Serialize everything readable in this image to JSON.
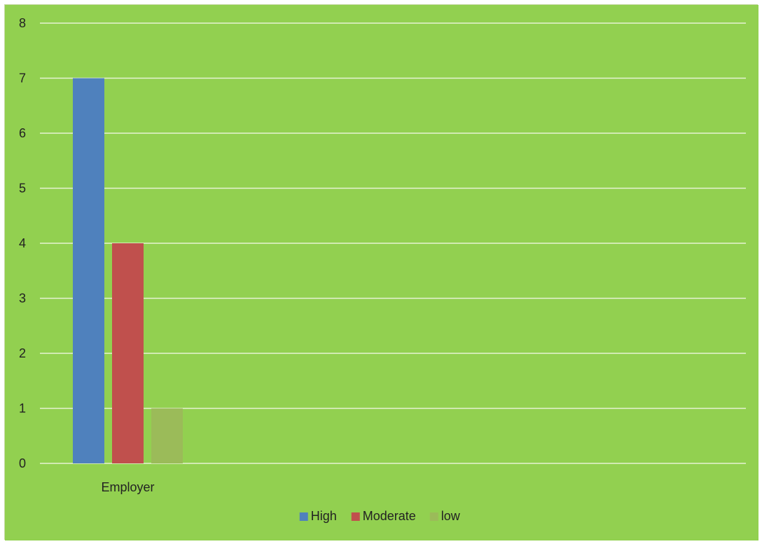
{
  "colors": {
    "background": "#92d050",
    "gridline": "#e6f2d3",
    "high": "#4f81bd",
    "moderate": "#c0504d",
    "low": "#9bbb59"
  },
  "chart_data": {
    "type": "bar",
    "title": "",
    "xlabel": "",
    "ylabel": "",
    "categories": [
      "Employer"
    ],
    "series": [
      {
        "name": "High",
        "values": [
          7
        ],
        "color": "#4f81bd"
      },
      {
        "name": "Moderate",
        "values": [
          4
        ],
        "color": "#c0504d"
      },
      {
        "name": "low",
        "values": [
          1
        ],
        "color": "#9bbb59"
      }
    ],
    "ylim": [
      0,
      8
    ],
    "yticks": [
      0,
      1,
      2,
      3,
      4,
      5,
      6,
      7,
      8
    ],
    "grid": true,
    "legend_position": "bottom"
  }
}
